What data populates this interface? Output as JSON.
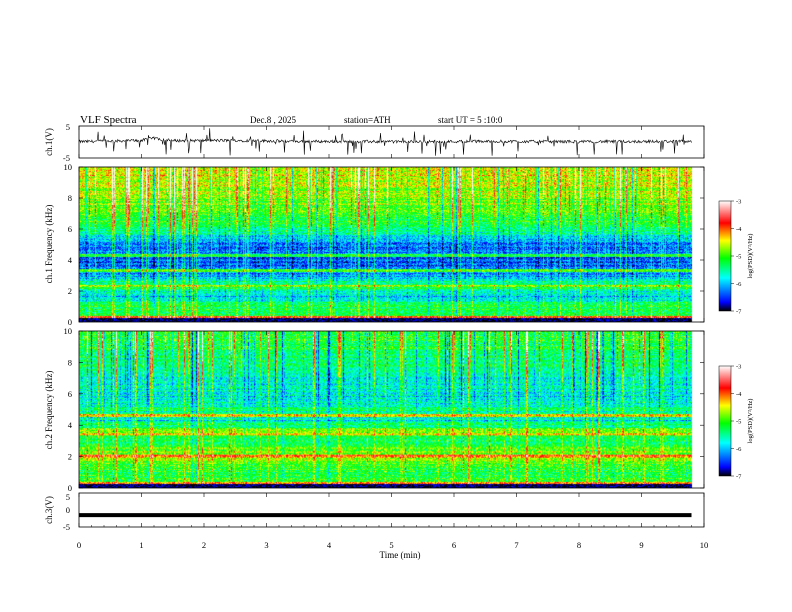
{
  "header": {
    "title": "VLF Spectra",
    "date": "Dec.8 , 2025",
    "station": "station=ATH",
    "start": "start UT = 5 :10:0"
  },
  "chart_data": [
    {
      "type": "line",
      "panel": "ch1-waveform",
      "ylabel": "ch.1(V)",
      "ylim": [
        -5,
        5
      ],
      "yticks": [
        "5",
        "-5"
      ],
      "x_unit": "min",
      "xlim": [
        0,
        9.8
      ],
      "baseline_v": 0.2,
      "notes": "noisy time series with many downward spikes; elevated near t=1.0-1.4 min",
      "representative_points": [
        [
          0,
          0.1
        ],
        [
          0.5,
          0.3
        ],
        [
          1.0,
          0.5
        ],
        [
          1.2,
          1.2
        ],
        [
          1.5,
          0.4
        ],
        [
          2.5,
          0.5
        ],
        [
          3.5,
          0.2
        ],
        [
          5,
          0.1
        ],
        [
          6.5,
          0.2
        ],
        [
          8,
          0.1
        ],
        [
          9.8,
          0.2
        ]
      ]
    },
    {
      "type": "heatmap",
      "panel": "ch1-spectrogram",
      "ylabel": "ch.1 Frequency (kHz)",
      "ylim": [
        0,
        10
      ],
      "yticks": [
        "0",
        "2",
        "4",
        "6",
        "8",
        "10"
      ],
      "x_unit": "min",
      "xlim": [
        0,
        9.8
      ],
      "color_scale": {
        "label": "log(PSD)(V²/Hz)",
        "range": [
          -7,
          -3
        ],
        "ticks": [
          "-3",
          "-4",
          "-5",
          "-6",
          "-7"
        ],
        "colors": [
          "#000000",
          "#0000ff",
          "#00ffff",
          "#00ff00",
          "#ffff00",
          "#ff0000",
          "#ffffff"
        ]
      },
      "level_profile_khz": [
        {
          "f": 0.3,
          "v": -5.0
        },
        {
          "f": 1.0,
          "v": -5.2
        },
        {
          "f": 1.7,
          "v": -6.0
        },
        {
          "f": 2.3,
          "v": -5.0
        },
        {
          "f": 3.0,
          "v": -6.2
        },
        {
          "f": 4.0,
          "v": -6.4
        },
        {
          "f": 5.0,
          "v": -6.2
        },
        {
          "f": 6.0,
          "v": -5.3
        },
        {
          "f": 7.0,
          "v": -5.0
        },
        {
          "f": 8.0,
          "v": -4.8
        },
        {
          "f": 9.0,
          "v": -4.5
        },
        {
          "f": 10.0,
          "v": -4.3
        }
      ],
      "line_features_khz": [
        {
          "f": 0.3,
          "v": -3.8
        },
        {
          "f": 2.3,
          "v": -4.6
        },
        {
          "f": 3.3,
          "v": -5.0
        },
        {
          "f": 4.3,
          "v": -5.0
        }
      ],
      "sferics": "broadband vertical impulses across full time span"
    },
    {
      "type": "heatmap",
      "panel": "ch2-spectrogram",
      "ylabel": "ch.2 Frequency (kHz)",
      "ylim": [
        0,
        10
      ],
      "yticks": [
        "0",
        "2",
        "4",
        "6",
        "8",
        "10"
      ],
      "x_unit": "min",
      "xlim": [
        0,
        9.8
      ],
      "color_scale": {
        "label": "log(PSD)(V²/Hz)",
        "range": [
          -7,
          -3
        ],
        "ticks": [
          "-3",
          "-4",
          "-5",
          "-6",
          "-7"
        ],
        "colors": [
          "#000000",
          "#0000ff",
          "#00ffff",
          "#00ff00",
          "#ffff00",
          "#ff0000",
          "#ffffff"
        ]
      },
      "level_profile_khz": [
        {
          "f": 0.3,
          "v": -4.8
        },
        {
          "f": 1.0,
          "v": -5.2
        },
        {
          "f": 2.0,
          "v": -4.6
        },
        {
          "f": 3.0,
          "v": -5.3
        },
        {
          "f": 3.6,
          "v": -4.8
        },
        {
          "f": 4.3,
          "v": -5.8
        },
        {
          "f": 5.0,
          "v": -5.5
        },
        {
          "f": 6.0,
          "v": -5.8
        },
        {
          "f": 7.0,
          "v": -5.6
        },
        {
          "f": 8.0,
          "v": -5.4
        },
        {
          "f": 9.0,
          "v": -5.2
        },
        {
          "f": 10.0,
          "v": -5.1
        }
      ],
      "line_features_khz": [
        {
          "f": 2.0,
          "v": -3.9
        },
        {
          "f": 3.4,
          "v": -4.5
        },
        {
          "f": 4.6,
          "v": -4.4
        },
        {
          "f": 0.3,
          "v": -4.0
        }
      ],
      "sferics": "broadband vertical impulses across full time span"
    },
    {
      "type": "line",
      "panel": "ch3-waveform",
      "ylabel": "ch.3(V)",
      "ylim": [
        -5,
        5
      ],
      "yticks": [
        "5",
        "0",
        "-5"
      ],
      "x_unit": "min",
      "xlim": [
        0,
        9.8
      ],
      "baseline_v": -1.5,
      "notes": "flat thick trace near -1.5 V"
    }
  ],
  "xaxis": {
    "label": "Time (min)",
    "ticks": [
      "0",
      "1",
      "2",
      "3",
      "4",
      "5",
      "6",
      "7",
      "8",
      "9",
      "10"
    ],
    "range": [
      0,
      10
    ]
  }
}
